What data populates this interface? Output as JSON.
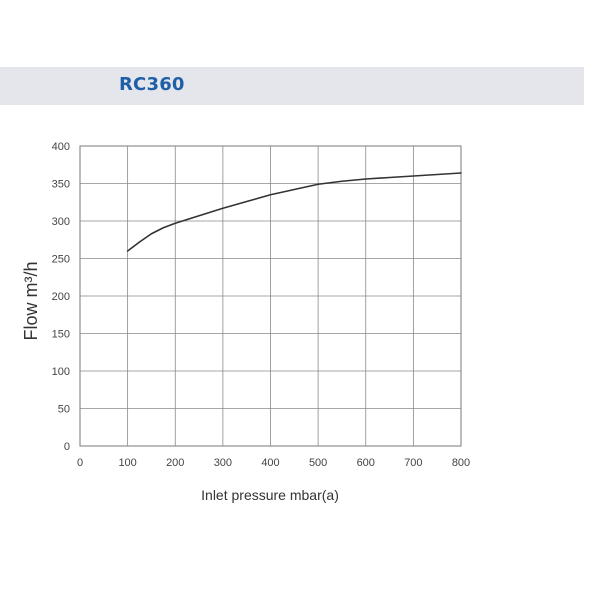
{
  "header": {
    "title": "RC360",
    "band_color": "#e5e6ec",
    "title_color": "#1f5fa8"
  },
  "chart_data": {
    "type": "line",
    "title": "RC360",
    "xlabel": "Inlet pressure mbar(a)",
    "ylabel": "Flow m³/h",
    "xlim": [
      0,
      800
    ],
    "ylim": [
      0,
      400
    ],
    "xticks": [
      0,
      100,
      200,
      300,
      400,
      500,
      600,
      700,
      800
    ],
    "yticks": [
      0,
      50,
      100,
      150,
      200,
      250,
      300,
      350,
      400
    ],
    "grid": true,
    "legend": "none",
    "series": [
      {
        "color": "#333333",
        "x": [
          100,
          125,
          150,
          175,
          200,
          250,
          300,
          350,
          400,
          450,
          500,
          550,
          600,
          650,
          700,
          750,
          800
        ],
        "y": [
          260,
          272,
          283,
          291,
          297,
          307,
          317,
          326,
          335,
          342,
          349,
          353,
          356,
          358,
          360,
          362,
          364
        ]
      }
    ]
  }
}
